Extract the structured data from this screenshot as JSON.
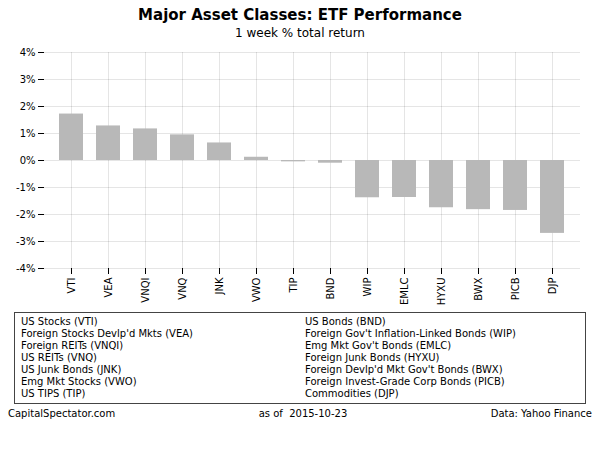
{
  "chart_data": {
    "type": "bar",
    "title": "Major Asset Classes: ETF Performance",
    "subtitle": "1 week % total return",
    "categories": [
      "VTI",
      "VEA",
      "VNQI",
      "VNQ",
      "JNK",
      "VWO",
      "TIP",
      "BND",
      "WIP",
      "EMLC",
      "HYXU",
      "BWX",
      "PICB",
      "DJP"
    ],
    "values": [
      1.72,
      1.28,
      1.17,
      0.95,
      0.65,
      0.12,
      -0.05,
      -0.1,
      -1.38,
      -1.37,
      -1.75,
      -1.82,
      -1.85,
      -2.7
    ],
    "color": "#b8b8b8",
    "ylim": [
      -4,
      4
    ],
    "yticks": [
      {
        "value": -4,
        "label": "-4%"
      },
      {
        "value": -3,
        "label": "-3%"
      },
      {
        "value": -2,
        "label": "-2%"
      },
      {
        "value": -1,
        "label": "-1%"
      },
      {
        "value": 0,
        "label": "0%"
      },
      {
        "value": 1,
        "label": "1%"
      },
      {
        "value": 2,
        "label": "2%"
      },
      {
        "value": 3,
        "label": "3%"
      },
      {
        "value": 4,
        "label": "4%"
      }
    ],
    "grid": true,
    "annotations": [
      "US Stocks (VTI)",
      "Foreign Stocks Devlp'd Mkts (VEA)",
      "Foreign REITs (VNQI)",
      "US REITs (VNQ)",
      "US Junk Bonds (JNK)",
      "Emg Mkt Stocks (VWO)",
      "US TIPS (TIP)",
      "US Bonds (BND)",
      "Foreign Gov't Inflation-Linked Bonds (WIP)",
      "Emg Mkt Gov't Bonds (EMLC)",
      "Foreign Junk Bonds (HYXU)",
      "Foreign Devlp'd Mkt Gov't Bonds (BWX)",
      "Foreign Invest-Grade Corp Bonds (PICB)",
      "Commodities (DJP)"
    ],
    "footer": [
      "CapitalSpectator.com",
      "as of  2015-10-23",
      "Data: Yahoo Finance"
    ]
  }
}
